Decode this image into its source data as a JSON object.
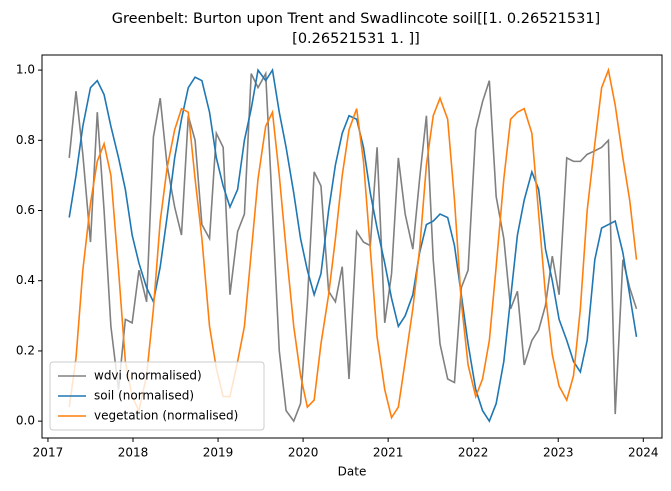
{
  "chart_data": {
    "type": "line",
    "title": [
      "Greenbelt: Burton upon Trent and Swadlincote soil[[1.          0.26521531]",
      "[0.26521531 1.        ]]"
    ],
    "xlabel": "Date",
    "x": [
      2017.25,
      2017.33,
      2017.41,
      2017.5,
      2017.58,
      2017.66,
      2017.74,
      2017.83,
      2017.91,
      2017.99,
      2018.07,
      2018.16,
      2018.24,
      2018.32,
      2018.4,
      2018.49,
      2018.57,
      2018.65,
      2018.73,
      2018.81,
      2018.9,
      2018.98,
      2019.06,
      2019.14,
      2019.23,
      2019.31,
      2019.39,
      2019.47,
      2019.56,
      2019.64,
      2019.72,
      2019.8,
      2019.89,
      2019.97,
      2020.05,
      2020.13,
      2020.21,
      2020.3,
      2020.38,
      2020.46,
      2020.54,
      2020.63,
      2020.71,
      2020.79,
      2020.87,
      2020.96,
      2021.04,
      2021.12,
      2021.2,
      2021.29,
      2021.37,
      2021.45,
      2021.53,
      2021.61,
      2021.7,
      2021.78,
      2021.86,
      2021.94,
      2022.03,
      2022.11,
      2022.19,
      2022.27,
      2022.36,
      2022.44,
      2022.52,
      2022.6,
      2022.69,
      2022.77,
      2022.85,
      2022.93,
      2023.01,
      2023.1,
      2023.18,
      2023.26,
      2023.34,
      2023.43,
      2023.51,
      2023.59,
      2023.67,
      2023.76,
      2023.84,
      2023.92
    ],
    "series": [
      {
        "name": "wdvi (normalised)",
        "color": "#808080",
        "values": [
          0.75,
          0.94,
          0.76,
          0.51,
          0.88,
          0.6,
          0.27,
          0.09,
          0.29,
          0.28,
          0.43,
          0.34,
          0.81,
          0.92,
          0.73,
          0.61,
          0.53,
          0.87,
          0.8,
          0.56,
          0.52,
          0.82,
          0.78,
          0.36,
          0.54,
          0.59,
          0.99,
          0.95,
          0.99,
          0.6,
          0.2,
          0.03,
          0.0,
          0.05,
          0.34,
          0.71,
          0.67,
          0.37,
          0.34,
          0.44,
          0.12,
          0.54,
          0.51,
          0.5,
          0.78,
          0.28,
          0.42,
          0.75,
          0.59,
          0.49,
          0.69,
          0.87,
          0.46,
          0.22,
          0.12,
          0.11,
          0.38,
          0.43,
          0.83,
          0.91,
          0.97,
          0.64,
          0.52,
          0.32,
          0.37,
          0.16,
          0.23,
          0.26,
          0.33,
          0.47,
          0.36,
          0.75,
          0.74,
          0.74,
          0.76,
          0.77,
          0.78,
          0.8,
          0.02,
          0.46,
          0.38,
          0.32
        ]
      },
      {
        "name": "soil (normalised)",
        "color": "#1f77b4",
        "values": [
          0.58,
          0.7,
          0.84,
          0.95,
          0.97,
          0.93,
          0.84,
          0.75,
          0.66,
          0.53,
          0.45,
          0.38,
          0.34,
          0.44,
          0.58,
          0.75,
          0.86,
          0.95,
          0.98,
          0.97,
          0.88,
          0.75,
          0.67,
          0.61,
          0.66,
          0.8,
          0.89,
          1.0,
          0.97,
          1.0,
          0.88,
          0.78,
          0.65,
          0.52,
          0.43,
          0.36,
          0.42,
          0.6,
          0.73,
          0.82,
          0.87,
          0.86,
          0.78,
          0.65,
          0.55,
          0.45,
          0.35,
          0.27,
          0.3,
          0.36,
          0.48,
          0.56,
          0.57,
          0.59,
          0.58,
          0.5,
          0.36,
          0.22,
          0.09,
          0.03,
          0.0,
          0.05,
          0.17,
          0.35,
          0.53,
          0.63,
          0.71,
          0.66,
          0.49,
          0.4,
          0.29,
          0.23,
          0.17,
          0.14,
          0.23,
          0.46,
          0.55,
          0.56,
          0.57,
          0.48,
          0.36,
          0.24
        ]
      },
      {
        "name": "vegetation (normalised)",
        "color": "#ff7f0e",
        "values": [
          0.04,
          0.18,
          0.43,
          0.62,
          0.74,
          0.79,
          0.7,
          0.43,
          0.17,
          0.07,
          0.03,
          0.13,
          0.32,
          0.57,
          0.72,
          0.83,
          0.89,
          0.88,
          0.69,
          0.52,
          0.27,
          0.15,
          0.07,
          0.07,
          0.17,
          0.27,
          0.48,
          0.69,
          0.84,
          0.88,
          0.7,
          0.49,
          0.27,
          0.13,
          0.04,
          0.06,
          0.22,
          0.36,
          0.52,
          0.7,
          0.83,
          0.89,
          0.74,
          0.49,
          0.24,
          0.09,
          0.01,
          0.04,
          0.17,
          0.32,
          0.49,
          0.73,
          0.87,
          0.92,
          0.86,
          0.63,
          0.34,
          0.16,
          0.07,
          0.12,
          0.23,
          0.44,
          0.69,
          0.86,
          0.88,
          0.89,
          0.82,
          0.59,
          0.36,
          0.19,
          0.1,
          0.06,
          0.13,
          0.32,
          0.6,
          0.79,
          0.95,
          1.0,
          0.9,
          0.75,
          0.63,
          0.46
        ]
      }
    ],
    "xlim": [
      2016.93,
      2024.22
    ],
    "ylim": [
      -0.048,
      1.043
    ],
    "xticks": [
      2017,
      2018,
      2019,
      2020,
      2021,
      2022,
      2023,
      2024
    ],
    "yticks": [
      {
        "value": 0,
        "label": "0.0"
      },
      {
        "value": 0.2,
        "label": "0.2"
      },
      {
        "value": 0.4,
        "label": "0.4"
      },
      {
        "value": 0.6,
        "label": "0.6"
      },
      {
        "value": 0.8,
        "label": "0.8"
      },
      {
        "value": 1,
        "label": "1.0"
      }
    ],
    "legend": "lower left",
    "grid": false
  }
}
